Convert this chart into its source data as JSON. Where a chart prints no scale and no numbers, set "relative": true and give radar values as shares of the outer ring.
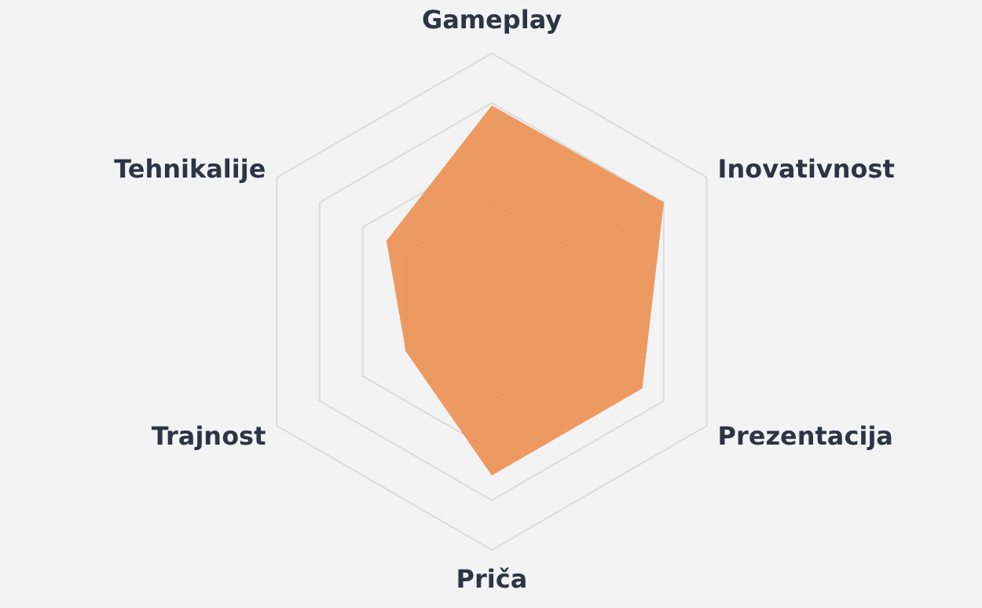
{
  "chart_data": {
    "type": "radar",
    "relative": true,
    "grid": true,
    "categories": [
      "Gameplay",
      "Inovativnost",
      "Prezentacija",
      "Priča",
      "Trajnost",
      "Tehnikalije"
    ],
    "series": [
      {
        "color": "#ec8f52",
        "values": [
          0.79,
          0.8,
          0.7,
          0.7,
          0.4,
          0.49
        ]
      }
    ]
  }
}
